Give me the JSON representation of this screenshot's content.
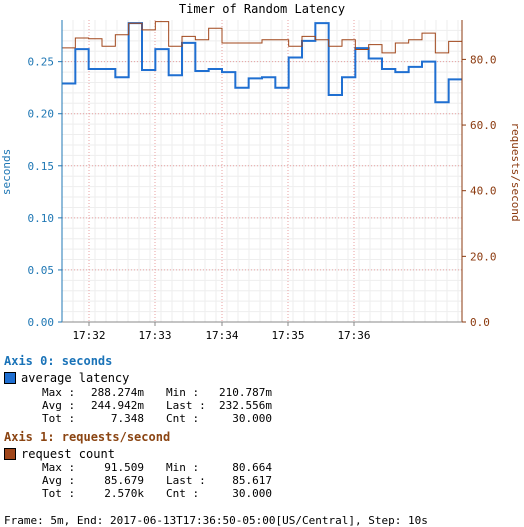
{
  "chart_data": {
    "type": "line",
    "title": "Timer of Random Latency",
    "x_ticks": [
      "17:32",
      "17:33",
      "17:34",
      "17:35",
      "17:36"
    ],
    "left_axis": {
      "label": "seconds",
      "ylim": [
        0,
        0.29
      ],
      "ticks": [
        "0.00",
        "0.05",
        "0.10",
        "0.15",
        "0.20",
        "0.25"
      ],
      "tick_values": [
        0,
        0.05,
        0.1,
        0.15,
        0.2,
        0.25
      ],
      "color": "#1f77b4"
    },
    "right_axis": {
      "label": "requests/second",
      "ylim": [
        0,
        92
      ],
      "ticks": [
        "0.0",
        "20.0",
        "40.0",
        "60.0",
        "80.0"
      ],
      "tick_values": [
        0,
        20,
        40,
        60,
        80
      ],
      "color": "#8b3a0f"
    },
    "grid": true,
    "series": [
      {
        "name": "average latency",
        "axis": "left",
        "color": "#1f6fd1",
        "values": [
          0.229,
          0.262,
          0.243,
          0.243,
          0.235,
          0.287,
          0.242,
          0.262,
          0.237,
          0.268,
          0.241,
          0.243,
          0.24,
          0.225,
          0.234,
          0.235,
          0.225,
          0.254,
          0.27,
          0.287,
          0.218,
          0.235,
          0.263,
          0.253,
          0.243,
          0.24,
          0.245,
          0.25,
          0.211,
          0.233
        ]
      },
      {
        "name": "request count",
        "axis": "right",
        "color": "#a0461a",
        "values": [
          83.5,
          86.5,
          86.3,
          84.0,
          87.5,
          91.0,
          89.0,
          91.5,
          84.0,
          87.0,
          86.0,
          89.5,
          85.0,
          85.0,
          85.0,
          86.0,
          86.0,
          84.0,
          87.0,
          86.0,
          84.0,
          86.0,
          83.0,
          84.5,
          82.0,
          85.0,
          86.0,
          88.0,
          82.0,
          85.5
        ]
      }
    ]
  },
  "legend": {
    "axis0_title": "Axis 0: seconds",
    "axis0_color": "#1a73b8",
    "axis1_title": "Axis 1: requests/second",
    "axis1_color": "#8b4513",
    "latency": {
      "name": "average latency",
      "max_label": "Max :",
      "max": "288.274m",
      "min_label": "Min :",
      "min": "210.787m",
      "avg_label": "Avg :",
      "avg": "244.942m",
      "last_label": "Last :",
      "last": "232.556m",
      "tot_label": "Tot :",
      "tot": "7.348",
      "cnt_label": "Cnt :",
      "cnt": "30.000"
    },
    "requests": {
      "name": "request count",
      "max_label": "Max :",
      "max": "91.509",
      "min_label": "Min :",
      "min": "80.664",
      "avg_label": "Avg :",
      "avg": "85.679",
      "last_label": "Last :",
      "last": "85.617",
      "tot_label": "Tot :",
      "tot": "2.570k",
      "cnt_label": "Cnt :",
      "cnt": "30.000"
    }
  },
  "footer": "Frame: 5m, End: 2017-06-13T17:36:50-05:00[US/Central], Step: 10s"
}
